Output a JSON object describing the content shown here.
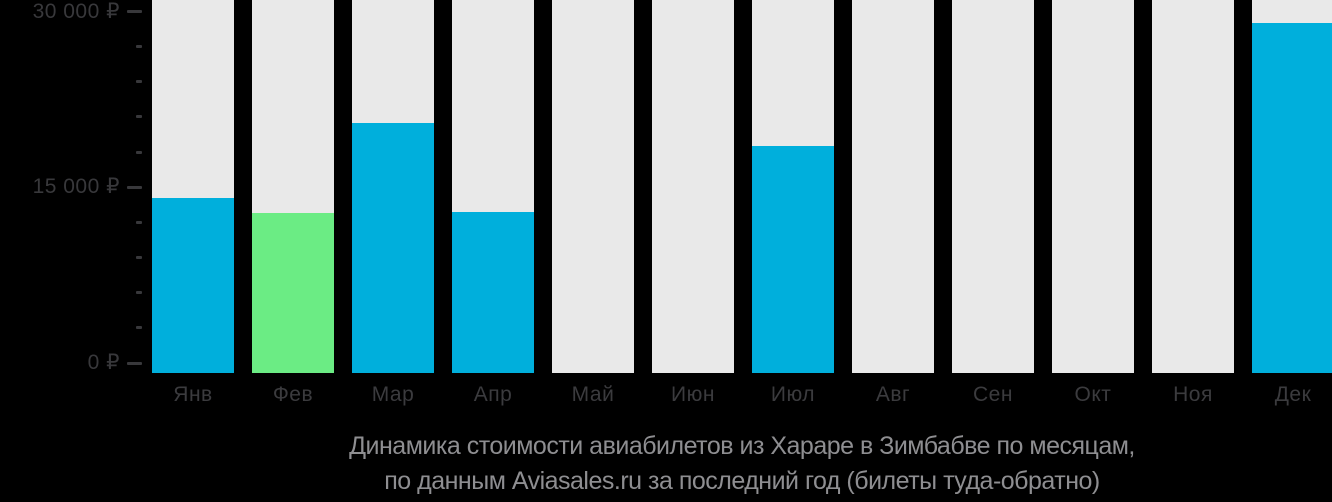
{
  "colors": {
    "background": "#000000",
    "bar_blue": "#00afdc",
    "bar_green": "#6bec84",
    "track_gray": "#e9e9e9",
    "axis_text": "#38383b",
    "month_text": "#3b3b3e",
    "title_text": "#8e8e91"
  },
  "chart_data": {
    "type": "bar",
    "title": "Динамика стоимости авиабилетов из Хараре в Зимбабве по месяцам,",
    "subtitle": "по данным Aviasales.ru за последний год (билеты туда-обратно)",
    "categories": [
      "Янв",
      "Фев",
      "Мар",
      "Апр",
      "Май",
      "Июн",
      "Июл",
      "Авг",
      "Сен",
      "Окт",
      "Ноя",
      "Дек"
    ],
    "values": [
      14100,
      12800,
      20500,
      12900,
      null,
      null,
      18500,
      null,
      null,
      null,
      null,
      29000
    ],
    "bar_colors": [
      "#00afdc",
      "#6bec84",
      "#00afdc",
      "#00afdc",
      null,
      null,
      "#00afdc",
      null,
      null,
      null,
      null,
      "#00afdc"
    ],
    "highlight": {
      "month": "Фев",
      "color": "#6bec84",
      "meaning": "lowest price month"
    },
    "no_data_months": [
      "Май",
      "Июн",
      "Авг",
      "Сен",
      "Окт",
      "Ноя"
    ],
    "y_ticks": [
      {
        "value": 0,
        "label": "0 ₽"
      },
      {
        "value": 15000,
        "label": "15 000 ₽"
      },
      {
        "value": 30000,
        "label": "30 000 ₽"
      }
    ],
    "minor_tick_step": 3000,
    "ylim": [
      0,
      31000
    ],
    "currency": "₽",
    "grid": false,
    "legend": false,
    "xlabel": "",
    "ylabel": ""
  }
}
